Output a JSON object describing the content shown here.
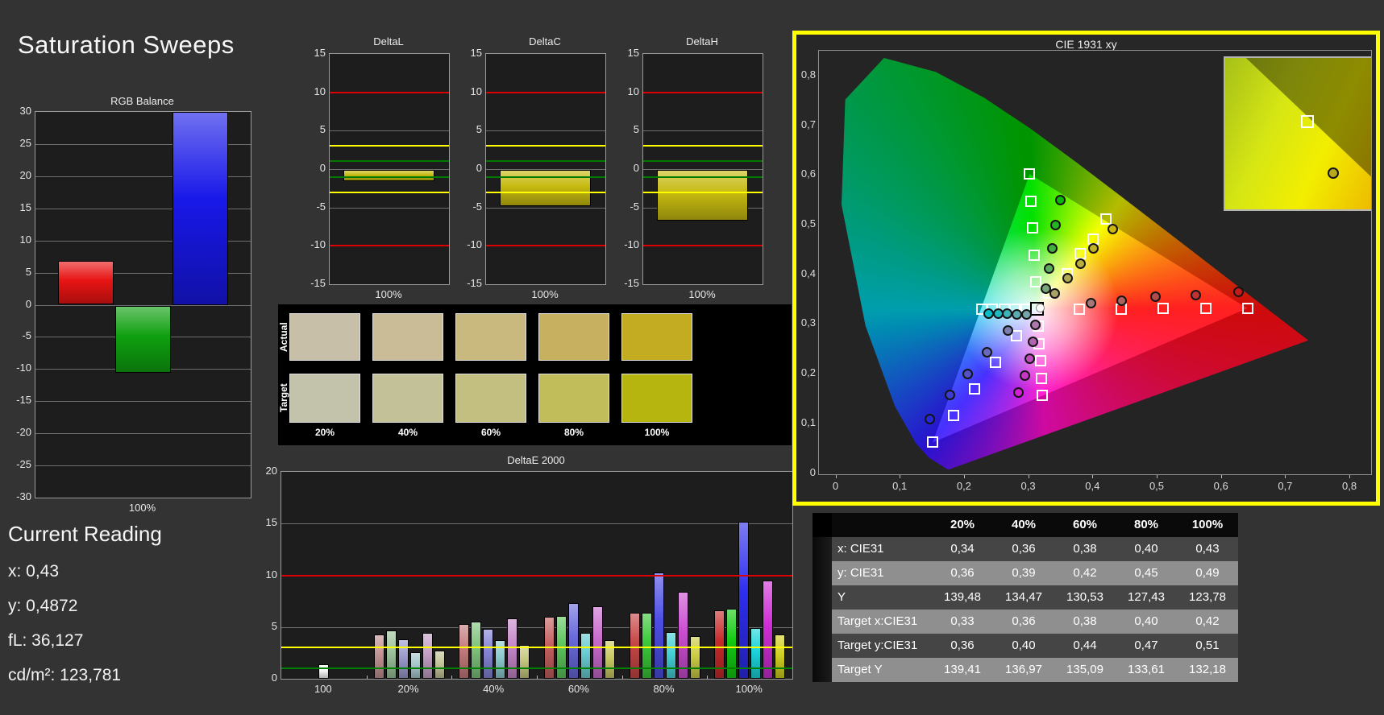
{
  "app": {
    "title": "Saturation Sweeps"
  },
  "current_reading": {
    "title": "Current Reading",
    "items": [
      {
        "label": "x",
        "value": "0,43"
      },
      {
        "label": "y",
        "value": "0,4872"
      },
      {
        "label": "fL",
        "value": "36,127"
      },
      {
        "label": "cd/m²",
        "value": "123,781"
      }
    ]
  },
  "swatch_panel": {
    "row_labels": [
      "Actual",
      "Target"
    ],
    "col_labels": [
      "20%",
      "40%",
      "60%",
      "80%",
      "100%"
    ],
    "actual_colors": [
      "#c8bfa9",
      "#c9bc97",
      "#c9b97e",
      "#c7b160",
      "#c3ab22"
    ],
    "target_colors": [
      "#c3c3ac",
      "#c3c197",
      "#c3bf80",
      "#c2bd5b",
      "#b6b40e"
    ]
  },
  "table": {
    "header": [
      "",
      "20%",
      "40%",
      "60%",
      "80%",
      "100%"
    ],
    "rows": [
      {
        "label": "x: CIE31",
        "values": [
          "0,34",
          "0,36",
          "0,38",
          "0,40",
          "0,43"
        ]
      },
      {
        "label": "y: CIE31",
        "values": [
          "0,36",
          "0,39",
          "0,42",
          "0,45",
          "0,49"
        ]
      },
      {
        "label": "Y",
        "values": [
          "139,48",
          "134,47",
          "130,53",
          "127,43",
          "123,78"
        ]
      },
      {
        "label": "Target x:CIE31",
        "values": [
          "0,33",
          "0,36",
          "0,38",
          "0,40",
          "0,42"
        ]
      },
      {
        "label": "Target y:CIE31",
        "values": [
          "0,36",
          "0,40",
          "0,44",
          "0,47",
          "0,51"
        ]
      },
      {
        "label": "Target Y",
        "values": [
          "139,41",
          "136,97",
          "135,09",
          "133,61",
          "132,18"
        ]
      }
    ],
    "row_dark_bg": "#454545",
    "row_light_bg": "#8f8f8f",
    "header_bg": "#0a0a0a"
  },
  "chart_data": [
    {
      "id": "rgb_balance",
      "type": "bar",
      "title": "RGB Balance",
      "xlabel": "100%",
      "ylim": [
        -30,
        30
      ],
      "ytick_step": 5,
      "series": [
        {
          "name": "red",
          "values": [
            6.8
          ],
          "color": "#e81414"
        },
        {
          "name": "green",
          "values": [
            -10.4
          ],
          "color": "#0fa00f"
        },
        {
          "name": "blue",
          "values": [
            30
          ],
          "color": "#1818e8"
        }
      ]
    },
    {
      "id": "deltaL",
      "type": "bar",
      "title": "DeltaL",
      "xlabel": "100%",
      "ylim": [
        -15,
        15
      ],
      "ytick_step": 5,
      "values": [
        -1.5
      ],
      "bar_color": "#c6ba10",
      "ref_lines": [
        {
          "value": 10,
          "color": "#dd0000"
        },
        {
          "value": 3,
          "color": "#ffff00"
        },
        {
          "value": 1,
          "color": "#007a00"
        },
        {
          "value": -1,
          "color": "#007a00"
        },
        {
          "value": -3,
          "color": "#ffff00"
        },
        {
          "value": -10,
          "color": "#dd0000"
        }
      ]
    },
    {
      "id": "deltaC",
      "type": "bar",
      "title": "DeltaC",
      "xlabel": "100%",
      "ylim": [
        -15,
        15
      ],
      "ytick_step": 5,
      "values": [
        -4.7
      ],
      "bar_color": "#c6ba10",
      "ref_lines": [
        {
          "value": 10,
          "color": "#dd0000"
        },
        {
          "value": 3,
          "color": "#ffff00"
        },
        {
          "value": 1,
          "color": "#007a00"
        },
        {
          "value": -1,
          "color": "#007a00"
        },
        {
          "value": -3,
          "color": "#ffff00"
        },
        {
          "value": -10,
          "color": "#dd0000"
        }
      ]
    },
    {
      "id": "deltaH",
      "type": "bar",
      "title": "DeltaH",
      "xlabel": "100%",
      "ylim": [
        -15,
        15
      ],
      "ytick_step": 5,
      "values": [
        -6.6
      ],
      "bar_color": "#c6ba10",
      "ref_lines": [
        {
          "value": 10,
          "color": "#dd0000"
        },
        {
          "value": 3,
          "color": "#ffff00"
        },
        {
          "value": 1,
          "color": "#007a00"
        },
        {
          "value": -1,
          "color": "#007a00"
        },
        {
          "value": -3,
          "color": "#ffff00"
        },
        {
          "value": -10,
          "color": "#dd0000"
        }
      ]
    },
    {
      "id": "deltae2000",
      "type": "bar",
      "title": "DeltaE 2000",
      "ylim": [
        0,
        20
      ],
      "yticks": [
        0,
        5,
        10,
        15,
        20
      ],
      "ref_lines": [
        {
          "value": 10,
          "color": "#dd0000"
        },
        {
          "value": 3,
          "color": "#ffff00"
        },
        {
          "value": 1,
          "color": "#008000"
        }
      ],
      "categories": [
        "100",
        "20%",
        "40%",
        "60%",
        "80%",
        "100%"
      ],
      "series_order": [
        "red",
        "green",
        "blue",
        "cyan",
        "magenta",
        "yellow"
      ],
      "groups": [
        [
          1.4
        ],
        [
          4.3,
          4.7,
          3.8,
          2.6,
          4.4,
          2.7
        ],
        [
          5.3,
          5.5,
          4.8,
          3.7,
          5.8,
          3.3
        ],
        [
          6.0,
          6.1,
          7.3,
          4.4,
          7.0,
          3.7
        ],
        [
          6.4,
          6.4,
          10.3,
          4.5,
          8.4,
          4.1
        ],
        [
          6.6,
          6.8,
          15.2,
          4.9,
          9.5,
          4.3
        ]
      ],
      "white_bar_color": "#f4f4f4",
      "palette": {
        "red": [
          "#c29292",
          "#c47c7c",
          "#c56060",
          "#c64747",
          "#c72a2a"
        ],
        "green": [
          "#9cc29a",
          "#7fc47d",
          "#5cc65a",
          "#3bc839",
          "#14ca12"
        ],
        "blue": [
          "#9a9ace",
          "#8484d4",
          "#6a6adc",
          "#4e4ee4",
          "#2d2dee"
        ],
        "cyan": [
          "#a8c6ca",
          "#8ac9ce",
          "#68ccd2",
          "#44d0d6",
          "#1cd4da"
        ],
        "magenta": [
          "#c4a0c6",
          "#c687ca",
          "#c96ccd",
          "#cc4ed1",
          "#cf2ed5"
        ],
        "yellow": [
          "#c4c49a",
          "#c6c680",
          "#c9c963",
          "#cccc45",
          "#d0d022"
        ]
      }
    },
    {
      "id": "cie",
      "type": "scatter",
      "title": "CIE 1931 xy",
      "xlim": [
        0,
        0.8
      ],
      "ylim": [
        0,
        0.848
      ],
      "x_ticks": [
        "0",
        "0,1",
        "0,2",
        "0,3",
        "0,4",
        "0,5",
        "0,6",
        "0,7",
        "0,8"
      ],
      "y_ticks": [
        "0",
        "0,1",
        "0,2",
        "0,3",
        "0,4",
        "0,5",
        "0,6",
        "0,7",
        "0,8"
      ],
      "gamut_triangle": {
        "red": [
          0.64,
          0.33
        ],
        "green": [
          0.301,
          0.6
        ],
        "blue": [
          0.15,
          0.06
        ]
      },
      "white_point": {
        "target": [
          0.3127,
          0.329
        ],
        "measured": [
          0.317,
          0.331
        ]
      },
      "sweeps": [
        {
          "name": "red",
          "targets": [
            [
              0.378,
              0.329
            ],
            [
              0.444,
              0.329
            ],
            [
              0.509,
              0.33
            ],
            [
              0.575,
              0.33
            ],
            [
              0.64,
              0.33
            ]
          ],
          "measured": [
            [
              0.397,
              0.34
            ],
            [
              0.444,
              0.346
            ],
            [
              0.497,
              0.353
            ],
            [
              0.559,
              0.357
            ],
            [
              0.626,
              0.363
            ]
          ],
          "dot_colors": [
            "#a57878",
            "#ad6262",
            "#b54b4b",
            "#bd3333",
            "#c51a1a"
          ]
        },
        {
          "name": "green",
          "targets": [
            [
              0.31,
              0.383
            ],
            [
              0.308,
              0.437
            ],
            [
              0.306,
              0.492
            ],
            [
              0.303,
              0.546
            ],
            [
              0.301,
              0.6
            ]
          ],
          "measured": [
            [
              0.326,
              0.369
            ],
            [
              0.331,
              0.41
            ],
            [
              0.336,
              0.45
            ],
            [
              0.341,
              0.497
            ],
            [
              0.349,
              0.548
            ]
          ],
          "dot_colors": [
            "#77a877",
            "#5cac5c",
            "#40b040",
            "#24b424",
            "#0ab80a"
          ]
        },
        {
          "name": "blue",
          "targets": [
            [
              0.28,
              0.275
            ],
            [
              0.248,
              0.221
            ],
            [
              0.215,
              0.167
            ],
            [
              0.183,
              0.114
            ],
            [
              0.15,
              0.06
            ]
          ],
          "measured": [
            [
              0.267,
              0.285
            ],
            [
              0.235,
              0.241
            ],
            [
              0.205,
              0.198
            ],
            [
              0.177,
              0.156
            ],
            [
              0.145,
              0.107
            ]
          ],
          "dot_colors": [
            "#7d7db2",
            "#6868bc",
            "#5252c6",
            "#3c3cd0",
            "#2626da"
          ]
        },
        {
          "name": "cyan",
          "targets": [
            [
              0.296,
              0.329
            ],
            [
              0.278,
              0.329
            ],
            [
              0.261,
              0.329
            ],
            [
              0.243,
              0.329
            ],
            [
              0.226,
              0.329
            ]
          ],
          "measured": [
            [
              0.296,
              0.318
            ],
            [
              0.281,
              0.318
            ],
            [
              0.266,
              0.319
            ],
            [
              0.252,
              0.319
            ],
            [
              0.237,
              0.32
            ]
          ],
          "dot_colors": [
            "#74a6aa",
            "#58acb2",
            "#3cb2ba",
            "#20b8c2",
            "#08bec8"
          ]
        },
        {
          "name": "magenta",
          "targets": [
            [
              0.314,
              0.294
            ],
            [
              0.316,
              0.259
            ],
            [
              0.318,
              0.224
            ],
            [
              0.319,
              0.189
            ],
            [
              0.321,
              0.154
            ]
          ],
          "measured": [
            [
              0.31,
              0.297
            ],
            [
              0.306,
              0.263
            ],
            [
              0.301,
              0.229
            ],
            [
              0.293,
              0.194
            ],
            [
              0.283,
              0.16
            ]
          ],
          "dot_colors": [
            "#aa78aa",
            "#b462b4",
            "#be4cbe",
            "#c836c8",
            "#d220d2"
          ]
        },
        {
          "name": "yellow",
          "targets": [
            [
              0.33,
              0.36
            ],
            [
              0.36,
              0.4
            ],
            [
              0.38,
              0.44
            ],
            [
              0.4,
              0.47
            ],
            [
              0.42,
              0.51
            ]
          ],
          "measured": [
            [
              0.34,
              0.36
            ],
            [
              0.36,
              0.39
            ],
            [
              0.38,
              0.42
            ],
            [
              0.4,
              0.45
            ],
            [
              0.43,
              0.49
            ]
          ],
          "dot_colors": [
            "#aaa268",
            "#b2a852",
            "#baae3c",
            "#c2b426",
            "#cab810"
          ]
        }
      ],
      "inset": {
        "square_pos": [
          0.555,
          0.42
        ],
        "circle_pos": [
          0.73,
          0.76
        ],
        "circle_color": "#b7a91c"
      }
    }
  ]
}
